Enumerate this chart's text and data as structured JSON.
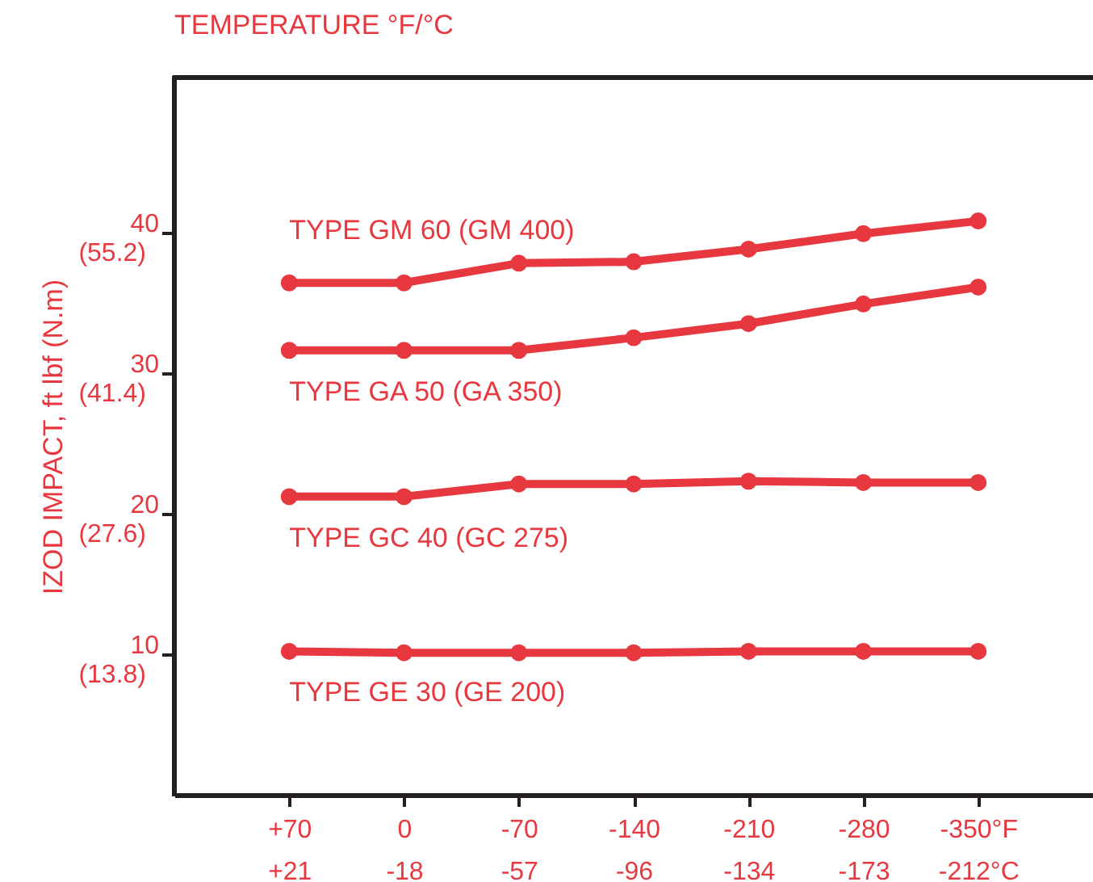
{
  "chart_data": {
    "type": "line",
    "xlabel": "TEMPERATURE °F/°C",
    "y2label": "IZOD IMPACT, ft lbf (N.m)",
    "categories": [
      "+70\n+21",
      "0\n-18",
      "-70\n-57",
      "-140\n-96",
      "-210\n-134",
      "-280\n-173",
      "-350°F\n-212°C"
    ],
    "ylim": [
      0,
      51
    ],
    "yticks": [
      10,
      20,
      30,
      40
    ],
    "y2lim": [
      0,
      70.38
    ],
    "y2ticks": [
      {
        "value": 13.8,
        "label": "(13.8)"
      },
      {
        "value": 27.6,
        "label": "(27.6)"
      },
      {
        "value": 41.4,
        "label": "(41.4)"
      },
      {
        "value": 55.2,
        "label": "(55.2)"
      }
    ],
    "marker": "circle",
    "line_style": "solid",
    "series": [
      {
        "name": "TYPE GM 60 (GM 400)",
        "color": "#e8383f",
        "values": [
          36.4,
          36.4,
          37.8,
          37.9,
          38.8,
          39.9,
          40.8
        ]
      },
      {
        "name": "TYPE GA 50 (GA 350)",
        "color": "#e8383f",
        "values": [
          31.6,
          31.6,
          31.6,
          32.5,
          33.5,
          34.9,
          36.1
        ]
      },
      {
        "name": "TYPE GC 40 (GC 275)",
        "color": "#e8383f",
        "values": [
          21.2,
          21.2,
          22.1,
          22.1,
          22.3,
          22.2,
          22.2
        ]
      },
      {
        "name": "TYPE GE 30 (GE 200)",
        "color": "#e8383f",
        "values": [
          10.2,
          10.1,
          10.1,
          10.1,
          10.2,
          10.2,
          10.2
        ]
      }
    ]
  }
}
